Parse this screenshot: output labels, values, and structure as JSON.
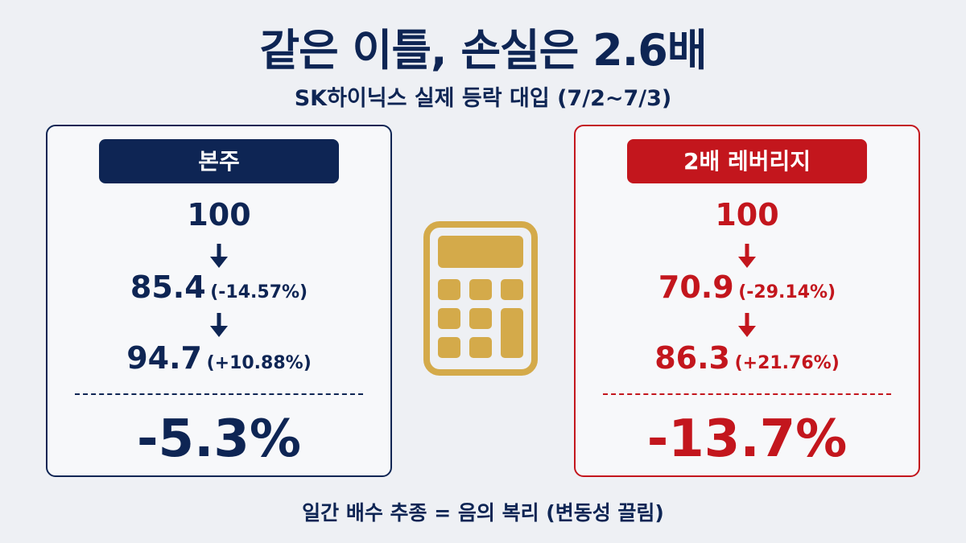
{
  "header": {
    "title": "같은 이틀, 손실은 2.6배",
    "subtitle": "SK하이닉스 실제 등락 대입 (7/2~7/3)"
  },
  "panels": [
    {
      "label": "본주",
      "start": "100",
      "steps": [
        {
          "value": "85.4",
          "change": "(-14.57%)"
        },
        {
          "value": "94.7",
          "change": "(+10.88%)"
        }
      ],
      "result": "-5.3%"
    },
    {
      "label": "2배 레버리지",
      "start": "100",
      "steps": [
        {
          "value": "70.9",
          "change": "(-29.14%)"
        },
        {
          "value": "86.3",
          "change": "(+21.76%)"
        }
      ],
      "result": "-13.7%"
    }
  ],
  "footer": "일간 배수 추종 = 음의 복리 (변동성 끌림)"
}
